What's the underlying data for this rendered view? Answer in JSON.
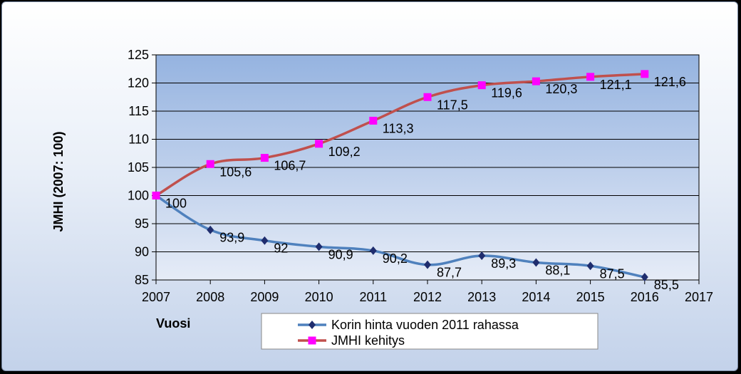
{
  "chart_data": {
    "type": "line",
    "xlabel": "Vuosi",
    "ylabel": "JMHI (2007: 100)",
    "xlim": [
      2007,
      2017
    ],
    "ylim": [
      85,
      125
    ],
    "xticks": [
      "2007",
      "2008",
      "2009",
      "2010",
      "2011",
      "2012",
      "2013",
      "2014",
      "2015",
      "2016",
      "2017"
    ],
    "yticks": [
      "85",
      "90",
      "95",
      "100",
      "105",
      "110",
      "115",
      "120",
      "125"
    ],
    "grid": true,
    "legend_position": "bottom-right",
    "series": [
      {
        "name": "Korin hinta vuoden 2011 rahassa",
        "color": "#4f81bd",
        "marker_color": "#1f2d6e",
        "marker": "diamond",
        "x": [
          2007,
          2008,
          2009,
          2010,
          2011,
          2012,
          2013,
          2014,
          2015,
          2016
        ],
        "values": [
          100,
          93.9,
          92,
          90.9,
          90.2,
          87.7,
          89.3,
          88.1,
          87.5,
          85.5
        ],
        "labels": [
          "",
          "93,9",
          "92",
          "90,9",
          "90,2",
          "87,7",
          "89,3",
          "88,1",
          "87,5",
          "85,5"
        ]
      },
      {
        "name": "JMHI kehitys",
        "color": "#c0504d",
        "marker_color": "#ff00ff",
        "marker": "square",
        "x": [
          2007,
          2008,
          2009,
          2010,
          2011,
          2012,
          2013,
          2014,
          2015,
          2016
        ],
        "values": [
          100,
          105.6,
          106.7,
          109.2,
          113.3,
          117.5,
          119.6,
          120.3,
          121.1,
          121.6
        ],
        "labels": [
          "100",
          "105,6",
          "106,7",
          "109,2",
          "113,3",
          "117,5",
          "119,6",
          "120,3",
          "121,1",
          "121,6"
        ]
      }
    ]
  }
}
